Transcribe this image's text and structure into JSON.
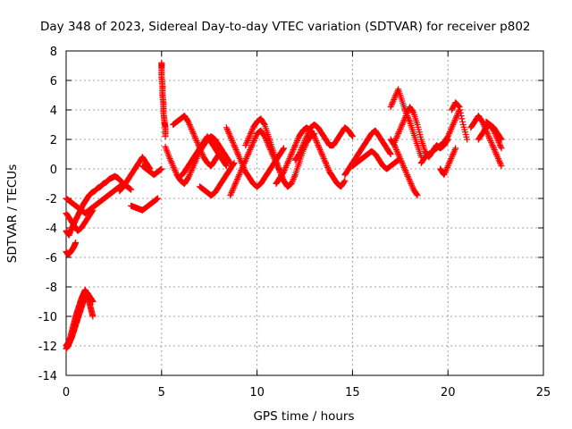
{
  "chart_data": {
    "type": "scatter",
    "title": "Day 348 of 2023, Sidereal Day-to-day VTEC variation (SDTVAR) for receiver p802",
    "xlabel": "GPS time / hours",
    "ylabel": "SDTVAR / TECUs",
    "xlim": [
      0,
      25
    ],
    "ylim": [
      -14,
      8
    ],
    "xticks": [
      0,
      5,
      10,
      15,
      20,
      25
    ],
    "yticks": [
      -14,
      -12,
      -10,
      -8,
      -6,
      -4,
      -2,
      0,
      2,
      4,
      6,
      8
    ],
    "grid": true,
    "marker": "plus",
    "color": "#ff0000",
    "series": [
      {
        "name": "seg1",
        "x": [
          0.0,
          0.15,
          0.3,
          0.45,
          0.6,
          0.75,
          0.9,
          1.05,
          1.2,
          1.35,
          1.5,
          1.65,
          1.8,
          1.95,
          2.1,
          2.25,
          2.4,
          2.55,
          2.7,
          2.85,
          3.0
        ],
        "y": [
          -4.2,
          -4.5,
          -4.0,
          -3.6,
          -3.2,
          -2.8,
          -2.4,
          -2.1,
          -1.8,
          -1.6,
          -1.5,
          -1.3,
          -1.2,
          -1.0,
          -0.9,
          -0.7,
          -0.6,
          -0.5,
          -0.6,
          -0.8,
          -1.0
        ]
      },
      {
        "name": "seg2",
        "x": [
          0.0,
          0.1,
          0.2,
          0.3,
          0.4,
          0.5,
          0.6,
          0.7,
          0.8,
          0.9,
          1.0,
          1.1,
          1.2,
          1.3,
          1.4
        ],
        "y": [
          -12.0,
          -11.8,
          -11.5,
          -11.0,
          -10.5,
          -10.0,
          -9.6,
          -9.2,
          -8.8,
          -8.5,
          -8.2,
          -8.5,
          -9.0,
          -9.5,
          -10.0
        ]
      },
      {
        "name": "seg3",
        "x": [
          0.0,
          0.1,
          0.2,
          0.3,
          0.4,
          0.5,
          0.6,
          0.7,
          0.8,
          0.9,
          1.0,
          1.1,
          1.2,
          1.3,
          1.4
        ],
        "y": [
          -12.2,
          -12.0,
          -11.7,
          -11.4,
          -11.0,
          -10.6,
          -10.2,
          -9.8,
          -9.4,
          -9.0,
          -8.6,
          -8.4,
          -8.6,
          -8.8,
          -9.0
        ]
      },
      {
        "name": "seg4",
        "x": [
          0.0,
          0.1,
          0.2,
          0.3,
          0.4,
          0.5
        ],
        "y": [
          -5.6,
          -5.8,
          -5.7,
          -5.5,
          -5.3,
          -5.0
        ]
      },
      {
        "name": "seg5",
        "x": [
          0.0,
          0.2,
          0.4,
          0.6,
          0.8,
          1.0,
          1.2,
          1.4,
          1.6,
          1.8,
          2.0,
          2.2,
          2.4,
          2.6,
          2.8,
          3.0,
          3.2,
          3.4
        ],
        "y": [
          -2.0,
          -2.2,
          -2.4,
          -2.6,
          -2.8,
          -3.0,
          -2.8,
          -2.6,
          -2.4,
          -2.2,
          -2.0,
          -1.8,
          -1.6,
          -1.4,
          -1.2,
          -1.0,
          -1.2,
          -1.4
        ]
      },
      {
        "name": "seg6",
        "x": [
          0.0,
          0.2,
          0.4,
          0.6,
          0.8,
          1.0,
          1.2,
          1.4
        ],
        "y": [
          -3.0,
          -3.4,
          -3.8,
          -4.2,
          -4.0,
          -3.6,
          -3.2,
          -2.8
        ]
      },
      {
        "name": "seg7",
        "x": [
          2.8,
          3.0,
          3.2,
          3.4,
          3.6,
          3.8,
          4.0,
          4.2,
          4.4
        ],
        "y": [
          -1.5,
          -1.2,
          -0.8,
          -0.4,
          0.0,
          0.4,
          0.8,
          0.4,
          0.0
        ]
      },
      {
        "name": "seg8",
        "x": [
          3.4,
          3.6,
          3.8,
          4.0,
          4.2,
          4.4,
          4.6,
          4.8
        ],
        "y": [
          -2.5,
          -2.6,
          -2.7,
          -2.8,
          -2.6,
          -2.4,
          -2.2,
          -2.0
        ]
      },
      {
        "name": "seg9",
        "x": [
          4.0,
          4.2,
          4.4,
          4.6,
          4.8,
          5.0
        ],
        "y": [
          0.2,
          0.0,
          -0.2,
          -0.4,
          -0.2,
          0.0
        ]
      },
      {
        "name": "seg10",
        "x": [
          5.0,
          5.0,
          5.0,
          5.05,
          5.05,
          5.1,
          5.1,
          5.15,
          5.2,
          5.2
        ],
        "y": [
          7.2,
          6.8,
          6.2,
          5.6,
          5.0,
          4.4,
          3.8,
          3.2,
          2.8,
          2.2
        ]
      },
      {
        "name": "seg11",
        "x": [
          5.2,
          5.4,
          5.6,
          5.8,
          6.0,
          6.2,
          6.4,
          6.6,
          6.8,
          7.0,
          7.2,
          7.4,
          7.6,
          7.8,
          8.0,
          8.2,
          8.4,
          8.6
        ],
        "y": [
          1.5,
          0.8,
          0.2,
          -0.4,
          -0.8,
          -1.0,
          -0.6,
          0.0,
          0.6,
          1.2,
          1.6,
          2.0,
          2.2,
          2.0,
          1.6,
          1.2,
          0.8,
          0.4
        ]
      },
      {
        "name": "seg12",
        "x": [
          5.6,
          5.8,
          6.0,
          6.2,
          6.4,
          6.6,
          6.8,
          7.0,
          7.2,
          7.4,
          7.6,
          7.8,
          8.0
        ],
        "y": [
          3.0,
          3.2,
          3.4,
          3.6,
          3.2,
          2.6,
          2.0,
          1.4,
          0.8,
          0.4,
          0.2,
          0.6,
          1.0
        ]
      },
      {
        "name": "seg13",
        "x": [
          6.0,
          6.2,
          6.4,
          6.6,
          6.8,
          7.0,
          7.2,
          7.4,
          7.6,
          7.8,
          8.0,
          8.2,
          8.4
        ],
        "y": [
          -0.5,
          -0.2,
          0.2,
          0.6,
          1.0,
          1.4,
          1.8,
          2.2,
          1.8,
          1.4,
          1.0,
          0.6,
          0.2
        ]
      },
      {
        "name": "seg14",
        "x": [
          7.0,
          7.2,
          7.4,
          7.6,
          7.8,
          8.0,
          8.2,
          8.4,
          8.6,
          8.8
        ],
        "y": [
          -1.2,
          -1.4,
          -1.6,
          -1.8,
          -1.6,
          -1.2,
          -0.8,
          -0.4,
          0.0,
          0.4
        ]
      },
      {
        "name": "seg15",
        "x": [
          8.4,
          8.6,
          8.8,
          9.0,
          9.2,
          9.4,
          9.6,
          9.8,
          10.0,
          10.2,
          10.4,
          10.6,
          10.8,
          11.0,
          11.2,
          11.4
        ],
        "y": [
          2.8,
          2.2,
          1.6,
          1.0,
          0.4,
          -0.2,
          -0.6,
          -1.0,
          -1.2,
          -1.0,
          -0.6,
          -0.2,
          0.2,
          0.6,
          1.0,
          1.4
        ]
      },
      {
        "name": "seg16",
        "x": [
          8.6,
          8.8,
          9.0,
          9.2,
          9.4,
          9.6,
          9.8,
          10.0,
          10.2,
          10.4,
          10.6,
          10.8,
          11.0,
          11.2,
          11.4,
          11.6
        ],
        "y": [
          -1.8,
          -1.2,
          -0.6,
          0.0,
          0.6,
          1.2,
          1.8,
          2.4,
          2.6,
          2.2,
          1.6,
          1.0,
          0.4,
          -0.2,
          -0.8,
          -1.2
        ]
      },
      {
        "name": "seg17",
        "x": [
          9.4,
          9.6,
          9.8,
          10.0,
          10.2,
          10.4,
          10.6,
          10.8,
          11.0,
          11.2,
          11.4,
          11.6,
          11.8,
          12.0,
          12.2,
          12.4,
          12.6,
          12.8,
          13.0
        ],
        "y": [
          1.6,
          2.2,
          2.8,
          3.2,
          3.4,
          3.0,
          2.2,
          1.4,
          0.6,
          -0.2,
          -0.8,
          -1.2,
          -1.0,
          -0.4,
          0.4,
          1.2,
          1.8,
          2.2,
          2.4
        ]
      },
      {
        "name": "seg18",
        "x": [
          11.0,
          11.2,
          11.4,
          11.6,
          11.8,
          12.0,
          12.2,
          12.4,
          12.6,
          12.8,
          13.0,
          13.2,
          13.4,
          13.6,
          13.8,
          14.0,
          14.2,
          14.4,
          14.6
        ],
        "y": [
          -1.0,
          -0.6,
          -0.2,
          0.4,
          1.0,
          1.6,
          2.2,
          2.6,
          2.8,
          2.6,
          2.2,
          1.6,
          1.0,
          0.4,
          -0.2,
          -0.6,
          -1.0,
          -1.2,
          -0.8
        ]
      },
      {
        "name": "seg19",
        "x": [
          12.0,
          12.2,
          12.4,
          12.6,
          12.8,
          13.0,
          13.2,
          13.4,
          13.6,
          13.8,
          14.0,
          14.2,
          14.4,
          14.6,
          14.8,
          15.0
        ],
        "y": [
          0.6,
          1.0,
          1.6,
          2.2,
          2.8,
          3.0,
          2.8,
          2.4,
          2.0,
          1.6,
          1.6,
          2.0,
          2.4,
          2.8,
          2.6,
          2.2
        ]
      },
      {
        "name": "seg20",
        "x": [
          14.6,
          14.8,
          15.0,
          15.2,
          15.4,
          15.6,
          15.8,
          16.0,
          16.2,
          16.4,
          16.6,
          16.8,
          17.0
        ],
        "y": [
          -0.4,
          0.0,
          0.4,
          0.8,
          1.2,
          1.6,
          2.0,
          2.4,
          2.6,
          2.2,
          1.8,
          1.4,
          1.0
        ]
      },
      {
        "name": "seg21",
        "x": [
          15.0,
          15.2,
          15.4,
          15.6,
          15.8,
          16.0,
          16.2,
          16.4,
          16.6,
          16.8,
          17.0,
          17.2,
          17.4
        ],
        "y": [
          0.2,
          0.4,
          0.6,
          0.8,
          1.0,
          1.2,
          1.0,
          0.6,
          0.2,
          0.0,
          0.2,
          0.4,
          0.6
        ]
      },
      {
        "name": "seg22",
        "x": [
          17.0,
          17.2,
          17.4,
          17.6,
          17.8,
          18.0,
          18.2,
          18.4,
          18.6
        ],
        "y": [
          4.2,
          4.8,
          5.4,
          4.6,
          3.8,
          3.2,
          2.4,
          1.6,
          0.8
        ]
      },
      {
        "name": "seg23",
        "x": [
          17.0,
          17.2,
          17.4,
          17.6,
          17.8,
          18.0,
          18.2,
          18.4
        ],
        "y": [
          2.0,
          1.6,
          1.0,
          0.4,
          -0.2,
          -0.8,
          -1.4,
          -1.8
        ]
      },
      {
        "name": "seg24",
        "x": [
          17.2,
          17.4,
          17.6,
          17.8,
          18.0,
          18.2,
          18.4,
          18.6,
          18.8,
          19.0,
          19.2,
          19.4,
          19.6,
          19.8,
          20.0
        ],
        "y": [
          1.8,
          2.4,
          3.0,
          3.6,
          4.2,
          3.8,
          3.0,
          2.0,
          1.2,
          0.8,
          1.2,
          1.6,
          1.4,
          1.6,
          2.0
        ]
      },
      {
        "name": "seg25",
        "x": [
          18.6,
          18.8,
          19.0,
          19.2,
          19.4,
          19.6,
          19.8,
          20.0,
          20.2,
          20.4,
          20.6
        ],
        "y": [
          0.4,
          0.8,
          1.0,
          1.2,
          1.4,
          1.6,
          1.8,
          2.2,
          2.8,
          3.4,
          4.0
        ]
      },
      {
        "name": "seg26",
        "x": [
          19.6,
          19.8,
          20.0,
          20.2,
          20.4
        ],
        "y": [
          0.0,
          -0.4,
          0.2,
          0.8,
          1.4
        ]
      },
      {
        "name": "seg27",
        "x": [
          20.2,
          20.4,
          20.6,
          20.8,
          21.0
        ],
        "y": [
          4.0,
          4.5,
          4.2,
          3.0,
          2.0
        ]
      },
      {
        "name": "seg28",
        "x": [
          21.2,
          21.4,
          21.6,
          21.8,
          22.0,
          22.2,
          22.4,
          22.6,
          22.8
        ],
        "y": [
          2.8,
          3.2,
          3.6,
          3.2,
          2.6,
          2.0,
          1.4,
          0.8,
          0.2
        ]
      },
      {
        "name": "seg29",
        "x": [
          21.6,
          21.8,
          22.0,
          22.2,
          22.4,
          22.6,
          22.8
        ],
        "y": [
          2.0,
          2.4,
          2.8,
          3.0,
          2.6,
          2.0,
          1.4
        ]
      },
      {
        "name": "seg30",
        "x": [
          22.0,
          22.2,
          22.4,
          22.6,
          22.8
        ],
        "y": [
          3.2,
          3.0,
          2.8,
          2.4,
          2.0
        ]
      }
    ]
  }
}
